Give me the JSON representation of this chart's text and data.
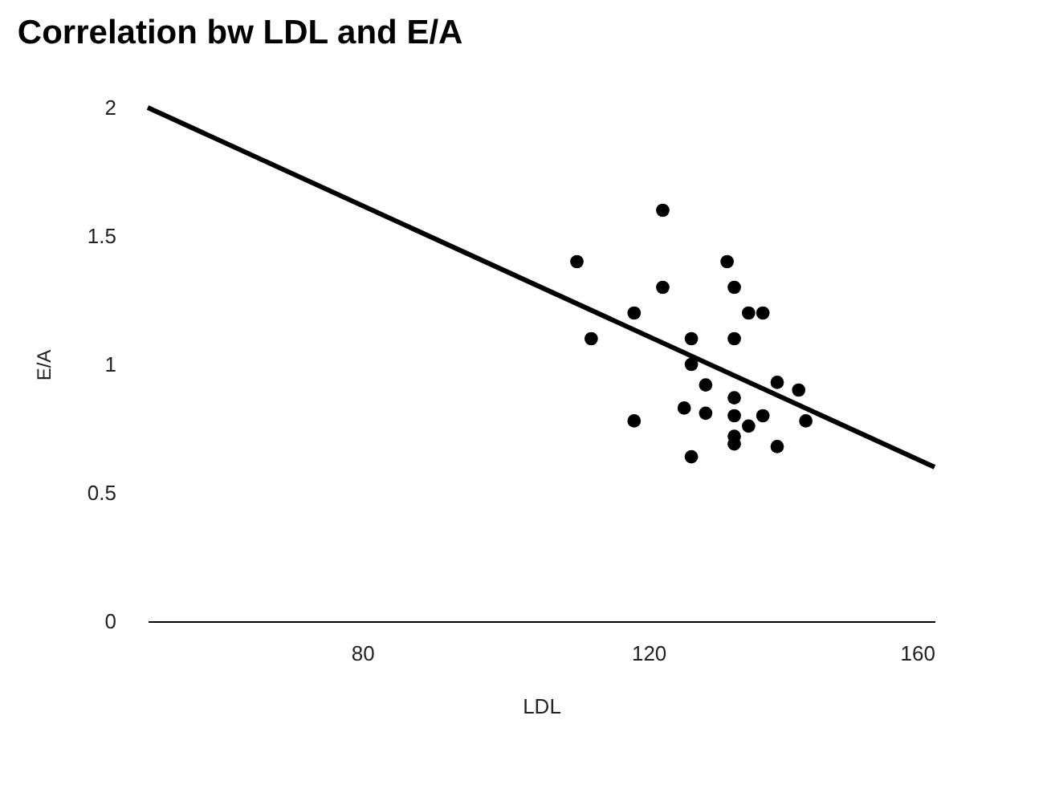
{
  "chart_data": {
    "type": "scatter",
    "title": "Correlation bw LDL and E/A",
    "xlabel": "LDL",
    "ylabel": "E/A",
    "xlim": [
      50,
      160
    ],
    "xticks": [
      80,
      120,
      160
    ],
    "ylim": [
      0,
      2
    ],
    "yticks": [
      0,
      0.5,
      1,
      1.5,
      2
    ],
    "grid": false,
    "marker": "circle",
    "series": [
      {
        "color": "#000000",
        "x": [
          122,
          110,
          131,
          122,
          132,
          118,
          134,
          136,
          112,
          126,
          132,
          126,
          128,
          138,
          141,
          132,
          125,
          128,
          132,
          136,
          134,
          118,
          142,
          132,
          132,
          138,
          126
        ],
        "values": [
          1.6,
          1.4,
          1.4,
          1.3,
          1.3,
          1.2,
          1.2,
          1.2,
          1.1,
          1.1,
          1.1,
          1.0,
          0.92,
          0.93,
          0.9,
          0.87,
          0.83,
          0.81,
          0.8,
          0.8,
          0.76,
          0.78,
          0.78,
          0.72,
          0.69,
          0.68,
          0.64
        ]
      },
      {
        "type": "line",
        "color": "#000000",
        "marker": "none",
        "line_style": "solid",
        "x": [
          50,
          160
        ],
        "values": [
          2.0,
          0.6
        ]
      }
    ]
  }
}
